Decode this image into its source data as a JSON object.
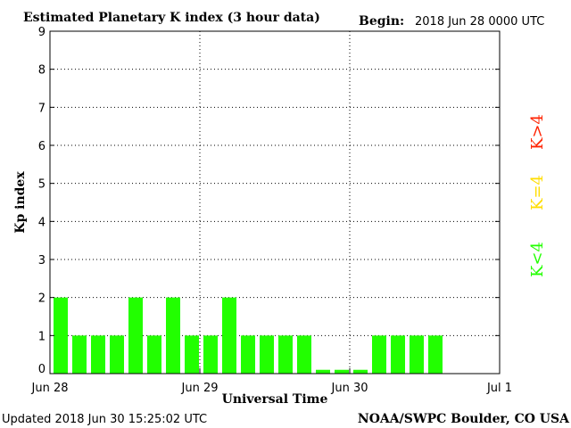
{
  "chart_data": {
    "type": "bar",
    "title": "Estimated Planetary K index (3 hour data)",
    "begin_label": "Begin:",
    "begin_value": "2018 Jun 28 0000 UTC",
    "xlabel": "Universal Time",
    "ylabel": "Kp index",
    "ylim": [
      0,
      9
    ],
    "yticks": [
      "0",
      "1",
      "2",
      "3",
      "4",
      "5",
      "6",
      "7",
      "8",
      "9"
    ],
    "xticks": [
      "Jun 28",
      "Jun 29",
      "Jun 30",
      "Jul 1"
    ],
    "xlim_slots": 24,
    "grid": true,
    "bar_color": "#22ff00",
    "values": [
      2,
      1,
      1,
      1,
      2,
      1,
      2,
      1,
      1,
      2,
      1,
      1,
      1,
      1,
      0.1,
      0.1,
      0.1,
      1,
      1,
      1,
      1
    ],
    "legend": [
      {
        "label": "K<4",
        "color": "#22ff00"
      },
      {
        "label": "K=4",
        "color": "#ffdd00"
      },
      {
        "label": "K>4",
        "color": "#ff2200"
      }
    ]
  },
  "footer": {
    "updated": "Updated 2018 Jun 30 15:25:02 UTC",
    "source": "NOAA/SWPC Boulder, CO USA"
  }
}
